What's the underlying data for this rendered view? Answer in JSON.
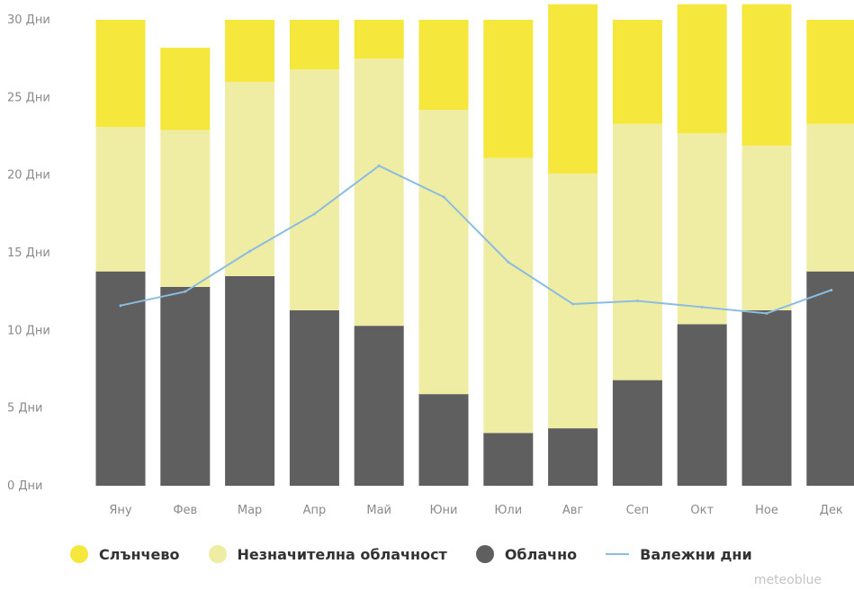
{
  "chart_data": {
    "type": "bar",
    "stacked": true,
    "categories": [
      "Яну",
      "Фев",
      "Мар",
      "Апр",
      "Май",
      "Юни",
      "Юли",
      "Авг",
      "Сеп",
      "Окт",
      "Ное",
      "Дек"
    ],
    "y_ticks": [
      "0 Дни",
      "5 Дни",
      "10 Дни",
      "15 Дни",
      "20 Дни",
      "25 Дни",
      "30 Дни"
    ],
    "ylim": [
      0,
      30
    ],
    "grid": false,
    "legend_position": "bottom",
    "series": [
      {
        "name": "Облачно",
        "color": "#5f5f5f",
        "values": [
          13.8,
          12.8,
          13.5,
          11.3,
          10.3,
          5.9,
          3.4,
          3.7,
          6.8,
          10.4,
          11.3,
          13.8
        ]
      },
      {
        "name": "Незначителна облачност",
        "color": "#efeda4",
        "values": [
          9.3,
          10.1,
          12.5,
          15.5,
          17.2,
          18.3,
          17.7,
          16.4,
          16.5,
          12.3,
          10.6,
          9.5
        ]
      },
      {
        "name": "Слънчево",
        "color": "#f6e73c",
        "values": [
          6.9,
          5.3,
          4.0,
          3.2,
          2.5,
          5.8,
          8.9,
          10.9,
          6.7,
          8.3,
          9.1,
          6.7
        ]
      }
    ],
    "line_series": {
      "name": "Валежни дни",
      "color": "#8cbde0",
      "values": [
        11.6,
        12.5,
        15.1,
        17.5,
        20.6,
        18.6,
        14.4,
        11.7,
        11.9,
        11.5,
        11.1,
        12.6
      ]
    }
  },
  "legend": [
    {
      "label": "Слънчево",
      "color": "#f6e73c",
      "shape": "dot"
    },
    {
      "label": "Незначителна облачност",
      "color": "#efeda4",
      "shape": "dot"
    },
    {
      "label": "Облачно",
      "color": "#5f5f5f",
      "shape": "dot"
    },
    {
      "label": "Валежни дни",
      "color": "#8cbde0",
      "shape": "line"
    }
  ],
  "credit": "meteoblue"
}
